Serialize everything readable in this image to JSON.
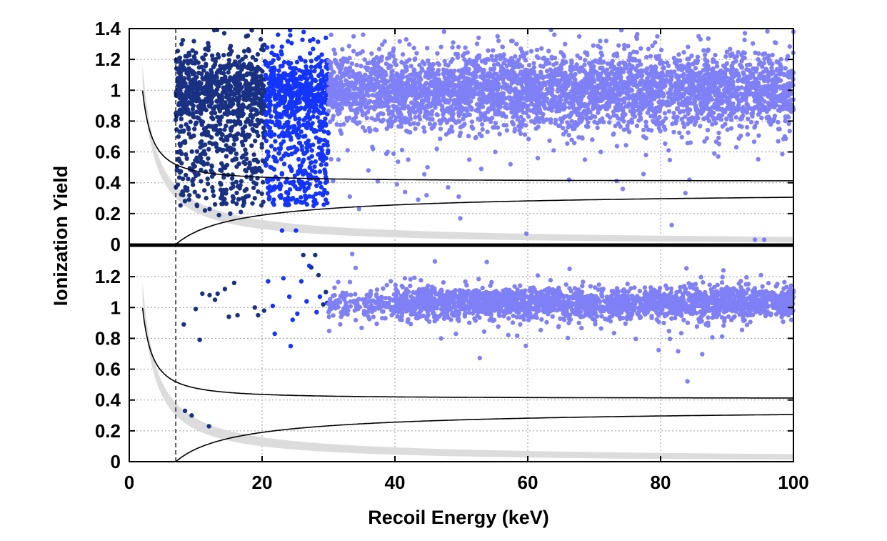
{
  "chart_data": {
    "type": "scatter",
    "xlabel": "Recoil Energy (keV)",
    "ylabel": "Ionization Yield",
    "xlim": [
      0,
      100
    ],
    "grid": true,
    "x_ticks": [
      "0",
      "20",
      "40",
      "60",
      "80",
      "100"
    ],
    "threshold_energy_keV": 7,
    "colors": {
      "low_band": "#1a3183",
      "mid_band": "#1434ff",
      "high_band": "#8080f6",
      "nr_band": "#dcdcdc",
      "curve": "#000000"
    },
    "panels": [
      {
        "name": "top",
        "ylim": [
          0,
          1.4
        ],
        "y_ticks": [
          "0",
          "0.2",
          "0.4",
          "0.6",
          "0.8",
          "1",
          "1.2",
          "1.4"
        ],
        "band_center": 1.0,
        "band_sigma": 0.12,
        "groups": [
          {
            "x_range": [
              7,
              20.5
            ],
            "color": "low_band",
            "density": "dense"
          },
          {
            "x_range": [
              20.5,
              30
            ],
            "color": "mid_band",
            "density": "dense"
          },
          {
            "x_range": [
              30,
              100
            ],
            "color": "high_band",
            "density": "dense"
          }
        ],
        "outlier_points": [
          [
            8.1,
            0.32
          ],
          [
            9.0,
            0.29
          ],
          [
            10.2,
            0.25
          ],
          [
            11.4,
            0.22
          ],
          [
            12.1,
            0.23
          ],
          [
            13.5,
            0.19
          ],
          [
            15.2,
            0.2
          ],
          [
            16.8,
            0.21
          ],
          [
            8.5,
            0.45
          ],
          [
            9.6,
            0.52
          ],
          [
            10.8,
            0.41
          ],
          [
            12.5,
            0.37
          ],
          [
            14.0,
            0.33
          ],
          [
            15.6,
            0.31
          ],
          [
            17.3,
            0.27
          ],
          [
            18.9,
            0.3
          ],
          [
            21.3,
            0.42
          ],
          [
            22.7,
            0.36
          ],
          [
            23.9,
            0.33
          ],
          [
            25.4,
            0.46
          ],
          [
            26.8,
            0.4
          ],
          [
            28.2,
            0.38
          ],
          [
            23.0,
            0.09
          ],
          [
            25.1,
            0.09
          ],
          [
            31.5,
            0.55
          ],
          [
            33.2,
            0.31
          ],
          [
            34.6,
            0.23
          ],
          [
            36.0,
            0.48
          ],
          [
            37.4,
            0.41
          ],
          [
            38.9,
            0.6
          ],
          [
            40.3,
            0.39
          ],
          [
            42.0,
            0.55
          ],
          [
            43.5,
            0.29
          ],
          [
            44.9,
            0.5
          ],
          [
            46.3,
            0.62
          ],
          [
            48.0,
            0.37
          ],
          [
            49.6,
            0.31
          ],
          [
            51.2,
            0.55
          ],
          [
            53.0,
            0.49
          ],
          [
            55.1,
            0.6
          ],
          [
            57.4,
            0.52
          ],
          [
            59.8,
            0.07
          ],
          [
            61.5,
            0.56
          ],
          [
            63.9,
            0.61
          ],
          [
            66.2,
            0.42
          ],
          [
            68.6,
            0.55
          ],
          [
            71.0,
            0.6
          ],
          [
            74.3,
            0.36
          ],
          [
            77.8,
            0.58
          ],
          [
            81.2,
            0.61
          ],
          [
            84.5,
            0.66
          ],
          [
            88.1,
            0.59
          ],
          [
            91.4,
            0.63
          ],
          [
            94.2,
            0.03
          ],
          [
            95.6,
            0.03
          ],
          [
            98.7,
            0.7
          ],
          [
            12.8,
            1.39
          ],
          [
            14.3,
            1.37
          ],
          [
            17.6,
            1.35
          ],
          [
            19.8,
            1.33
          ],
          [
            22.4,
            1.36
          ],
          [
            24.2,
            1.39
          ],
          [
            27.7,
            1.33
          ],
          [
            29.6,
            1.34
          ],
          [
            35.2,
            1.36
          ],
          [
            41.7,
            1.33
          ],
          [
            47.4,
            1.38
          ],
          [
            52.6,
            1.34
          ],
          [
            58.3,
            1.3
          ],
          [
            64.0,
            1.36
          ],
          [
            70.9,
            1.32
          ],
          [
            74.1,
            1.39
          ],
          [
            79.5,
            1.35
          ],
          [
            86.0,
            1.33
          ],
          [
            92.7,
            1.37
          ],
          [
            97.2,
            1.31
          ]
        ]
      },
      {
        "name": "bottom",
        "ylim": [
          0,
          1.4
        ],
        "y_ticks": [
          "0",
          "0.2",
          "0.4",
          "0.6",
          "0.8",
          "1",
          "1.2"
        ],
        "points": [
          {
            "color": "low_band",
            "xy": [
              [
                8.4,
                0.33
              ],
              [
                9.4,
                0.3
              ],
              [
                12.0,
                0.23
              ],
              [
                8.2,
                0.89
              ],
              [
                10.0,
                0.99
              ],
              [
                10.6,
                0.79
              ],
              [
                11.0,
                1.09
              ],
              [
                12.1,
                1.08
              ],
              [
                12.9,
                1.05
              ],
              [
                13.3,
                1.09
              ],
              [
                14.4,
                1.12
              ],
              [
                15.0,
                0.94
              ],
              [
                15.8,
                1.16
              ],
              [
                16.3,
                0.95
              ],
              [
                18.9,
                1.0
              ],
              [
                19.4,
                0.95
              ],
              [
                20.3,
                0.98
              ],
              [
                26.2,
                1.34
              ],
              [
                28.0,
                1.34
              ],
              [
                27.4,
                1.26
              ],
              [
                28.5,
                1.21
              ],
              [
                29.6,
                1.1
              ],
              [
                29.2,
                1.02
              ]
            ]
          },
          {
            "color": "mid_band",
            "xy": [
              [
                20.9,
                1.17
              ],
              [
                21.6,
                1.01
              ],
              [
                21.9,
                0.83
              ],
              [
                23.2,
                1.19
              ],
              [
                24.1,
                1.07
              ],
              [
                24.3,
                0.75
              ],
              [
                24.6,
                0.92
              ],
              [
                25.3,
                0.96
              ],
              [
                25.9,
                1.17
              ],
              [
                26.7,
                1.04
              ],
              [
                27.1,
                1.27
              ],
              [
                28.2,
                0.97
              ],
              [
                28.7,
                1.07
              ],
              [
                29.8,
                1.03
              ]
            ]
          }
        ],
        "dense_band": {
          "x_range": [
            30,
            100
          ],
          "color": "high_band",
          "center": 1.03,
          "sigma": 0.05
        }
      }
    ]
  }
}
